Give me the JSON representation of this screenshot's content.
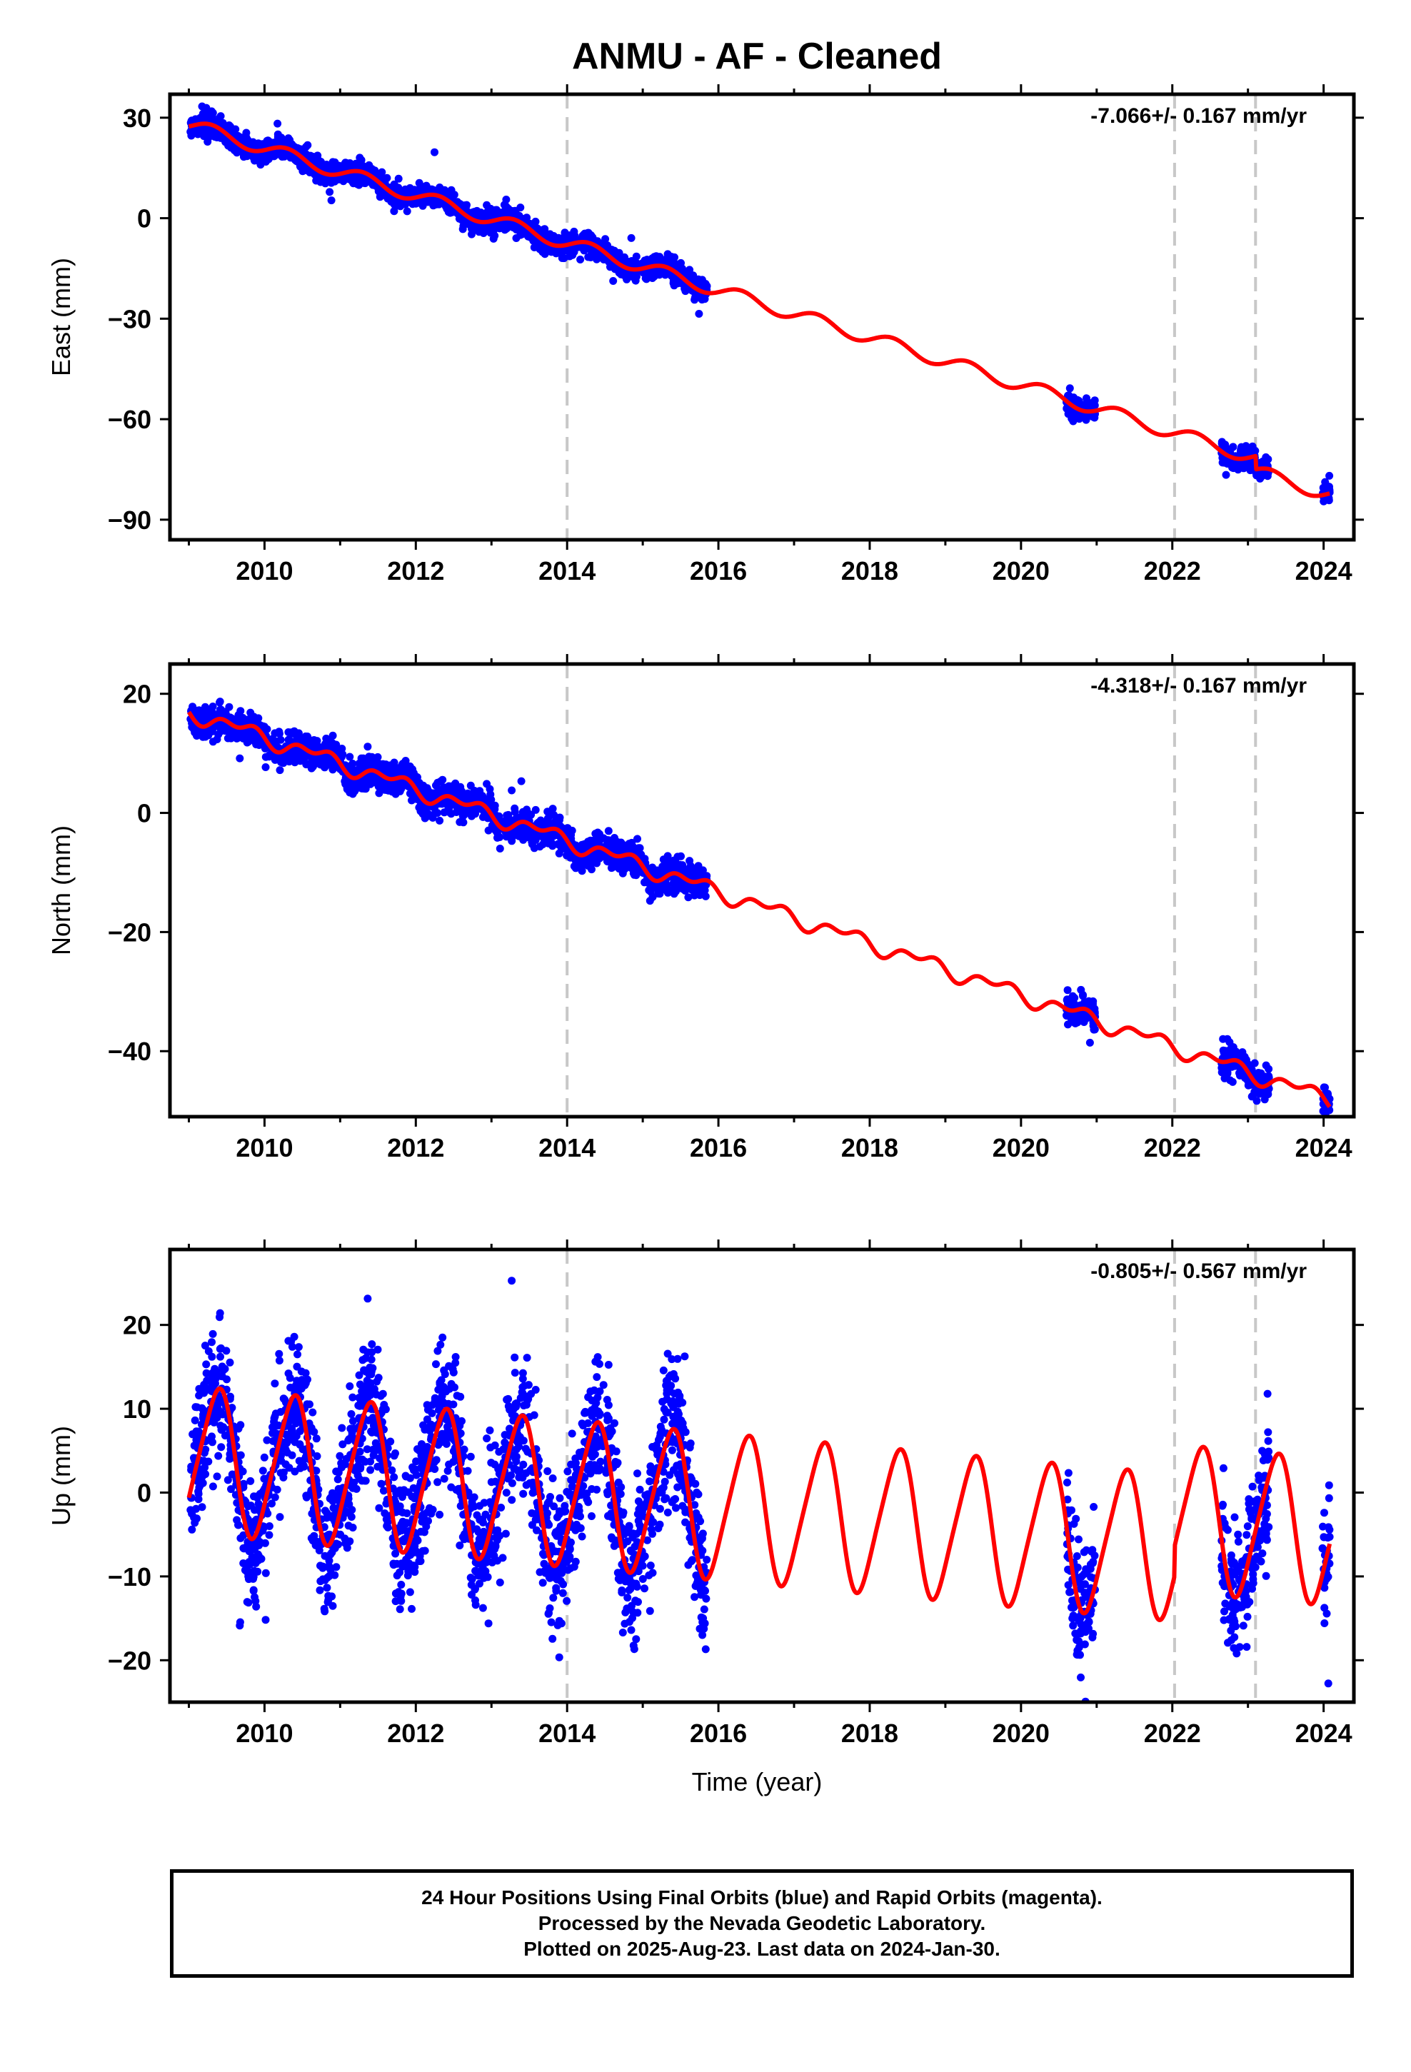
{
  "figure": {
    "title": "ANMU  - AF - Cleaned",
    "xlabel": "Time (year)",
    "colors": {
      "data": "#0000ff",
      "model": "#ff0000",
      "offset_line": "#c8c8c8",
      "frame": "#000000"
    }
  },
  "footer": {
    "line1": "24 Hour Positions Using Final Orbits (blue) and Rapid Orbits (magenta).",
    "line2": "Processed by the Nevada Geodetic Laboratory.",
    "line3": "Plotted on 2025-Aug-23. Last data on 2024-Jan-30."
  },
  "chart_data": [
    {
      "type": "scatter",
      "ylabel": "East (mm)",
      "rate_label": "-7.066+/- 0.167 mm/yr",
      "xlim": [
        2008.75,
        2024.4
      ],
      "ylim": [
        -96,
        37
      ],
      "xticks": [
        2010,
        2012,
        2014,
        2016,
        2018,
        2020,
        2022,
        2024
      ],
      "yticks": [
        30,
        0,
        -30,
        -60,
        -90
      ],
      "ytick_labels": [
        "30",
        "0",
        "−30",
        "−60",
        "−90"
      ],
      "offsets": [
        2014.0,
        2022.03,
        2023.1
      ],
      "model": {
        "rate": -7.066,
        "ref_year": 2009.0,
        "ref_value": 28.0,
        "annual_amp": 2.0,
        "annual_phase": 2009.3,
        "semiannual_amp": 0.0,
        "semiannual_phase": 2009.0,
        "steps": [
          [
            2023.1,
            -4.0
          ]
        ]
      },
      "data_spans": [
        [
          2009.02,
          2015.85
        ],
        [
          2020.6,
          2020.98
        ],
        [
          2022.65,
          2023.28
        ],
        [
          2023.98,
          2024.08
        ]
      ],
      "noise": 1.6,
      "data_density": 300
    },
    {
      "type": "scatter",
      "ylabel": "North (mm)",
      "rate_label": "-4.318+/- 0.167 mm/yr",
      "xlim": [
        2008.75,
        2024.4
      ],
      "ylim": [
        -51,
        25
      ],
      "xticks": [
        2010,
        2012,
        2014,
        2016,
        2018,
        2020,
        2022,
        2024
      ],
      "yticks": [
        20,
        0,
        -20,
        -40
      ],
      "ytick_labels": [
        "20",
        "0",
        "−20",
        "−40"
      ],
      "offsets": [
        2014.0,
        2022.03,
        2023.1
      ],
      "model": {
        "rate": -4.318,
        "ref_year": 2009.0,
        "ref_value": 17.0,
        "annual_amp": 1.0,
        "annual_phase": 2009.7,
        "semiannual_amp": 0.8,
        "semiannual_phase": 2009.4,
        "steps": [
          [
            2023.1,
            0.0
          ]
        ]
      },
      "data_spans": [
        [
          2009.02,
          2015.85
        ],
        [
          2020.6,
          2020.98
        ],
        [
          2022.65,
          2023.28
        ],
        [
          2023.98,
          2024.08
        ]
      ],
      "noise": 1.3,
      "data_density": 300
    },
    {
      "type": "scatter",
      "ylabel": "Up (mm)",
      "rate_label": "-0.805+/- 0.567 mm/yr",
      "xlim": [
        2008.75,
        2024.4
      ],
      "ylim": [
        -25,
        29
      ],
      "xticks": [
        2010,
        2012,
        2014,
        2016,
        2018,
        2020,
        2022,
        2024
      ],
      "yticks": [
        20,
        10,
        0,
        -10,
        -20
      ],
      "ytick_labels": [
        "20",
        "10",
        "0",
        "−10",
        "−20"
      ],
      "offsets": [
        2014.0,
        2022.03,
        2023.1
      ],
      "model": {
        "rate": -0.805,
        "ref_year": 2009.0,
        "ref_value": 4.0,
        "annual_amp": 8.5,
        "annual_phase": 2009.37,
        "semiannual_amp": 1.2,
        "semiannual_phase": 2009.5,
        "steps": [
          [
            2022.03,
            3.5
          ],
          [
            2023.1,
            0.0
          ]
        ]
      },
      "data_spans": [
        [
          2009.02,
          2015.85
        ],
        [
          2020.6,
          2020.98
        ],
        [
          2022.65,
          2023.28
        ],
        [
          2023.98,
          2024.08
        ]
      ],
      "noise": 4.0,
      "data_density": 300
    }
  ]
}
